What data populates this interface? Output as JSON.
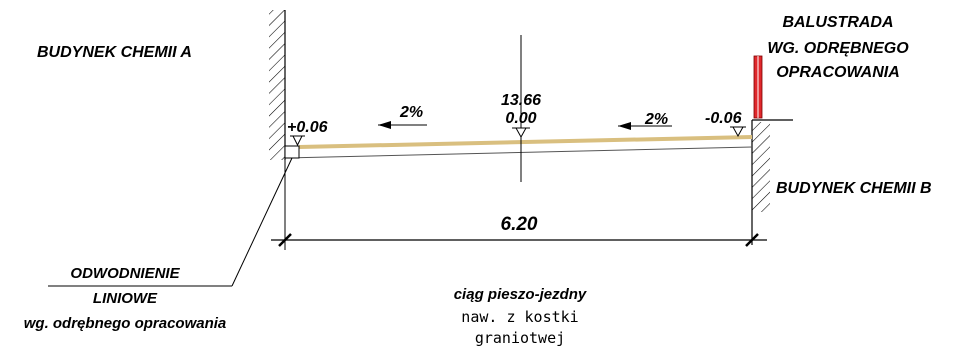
{
  "labels": {
    "building_a": "BUDYNEK CHEMII A",
    "building_b": "BUDYNEK CHEMII B",
    "railing_line1": "BALUSTRADA",
    "railing_line2": "WG. ODRĘBNEGO",
    "railing_line3": "OPRACOWANIA",
    "drain_line1": "ODWODNIENIE",
    "drain_line2": "LINIOWE",
    "drain_line3": "wg. odrębnego opracowania",
    "path_title": "ciąg pieszo-jezdny",
    "path_surface_line1": "naw. z kostki",
    "path_surface_line2": "graniotwej"
  },
  "levels": {
    "left": "+0.06",
    "center_abs": "13.66",
    "center_rel": "0.00",
    "right": "-0.06"
  },
  "slopes": {
    "left": "2%",
    "right": "2%"
  },
  "dimension": {
    "width": "6.20"
  },
  "colors": {
    "pavement": "#d9bf7f",
    "railing": "#e0282c",
    "line": "#000000"
  }
}
